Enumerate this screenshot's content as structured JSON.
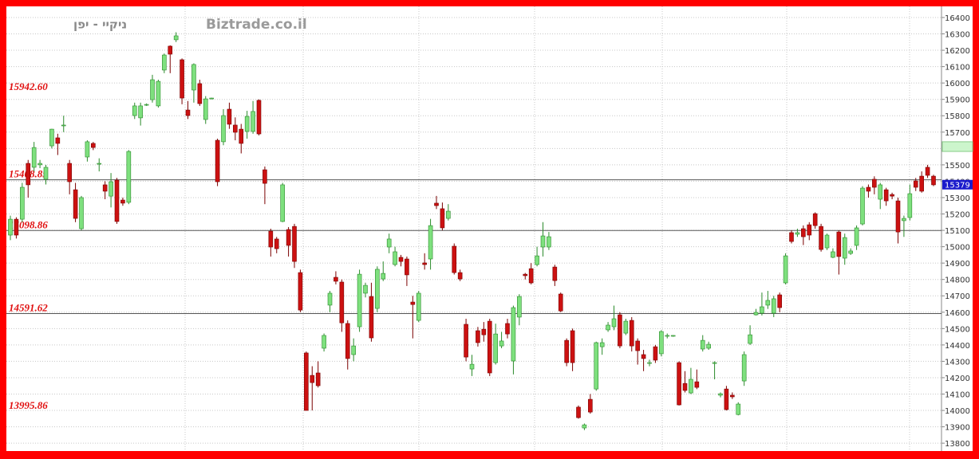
{
  "chart_data": {
    "type": "candlestick",
    "title": "ניקיי - יפן",
    "watermark": "Biztrade.co.il",
    "up_color": "#7ee07e",
    "down_color": "#cc1111",
    "grid": true,
    "ylim": [
      13752,
      16468
    ],
    "yticks": [
      13800,
      13900,
      14000,
      14100,
      14200,
      14300,
      14400,
      14500,
      14600,
      14700,
      14800,
      14900,
      15000,
      15100,
      15200,
      15300,
      15400,
      15500,
      15600,
      15700,
      15800,
      15900,
      16000,
      16100,
      16200,
      16300,
      16400
    ],
    "levels": [
      {
        "value": 15942.6,
        "label": "15942.60",
        "line": false
      },
      {
        "value": 15408.85,
        "label": "15408.85",
        "line": true
      },
      {
        "value": 15098.86,
        "label": "15098.86",
        "line": true
      },
      {
        "value": 14591.62,
        "label": "14591.62",
        "line": true
      },
      {
        "value": 13995.86,
        "label": "13995.86",
        "line": false
      }
    ],
    "last_price": 15379,
    "last_price_color": "#1a1acc",
    "highlight": [
      15582,
      15641
    ],
    "highlight_color": "#ccf5cc",
    "candles": [
      [
        15071,
        15190,
        15040,
        15168
      ],
      [
        15168,
        15180,
        15050,
        15071
      ],
      [
        15168,
        15390,
        15150,
        15363
      ],
      [
        15509,
        15530,
        15300,
        15378
      ],
      [
        15485,
        15640,
        15460,
        15606
      ],
      [
        15500,
        15530,
        15480,
        15509
      ],
      [
        15412,
        15500,
        15380,
        15485
      ],
      [
        15616,
        15720,
        15600,
        15718
      ],
      [
        15665,
        15690,
        15560,
        15631
      ],
      [
        15738,
        15800,
        15700,
        15743
      ],
      [
        15509,
        15530,
        15320,
        15397
      ],
      [
        15348,
        15390,
        15150,
        15173
      ],
      [
        15110,
        15310,
        15100,
        15300
      ],
      [
        15548,
        15650,
        15520,
        15641
      ],
      [
        15631,
        15640,
        15590,
        15606
      ],
      [
        15504,
        15540,
        15460,
        15509
      ],
      [
        15378,
        15400,
        15290,
        15339
      ],
      [
        15309,
        15450,
        15240,
        15397
      ],
      [
        15407,
        15420,
        15140,
        15154
      ],
      [
        15285,
        15300,
        15250,
        15266
      ],
      [
        15271,
        15590,
        15260,
        15582
      ],
      [
        15801,
        15880,
        15780,
        15860
      ],
      [
        15787,
        15880,
        15740,
        15860
      ],
      [
        15865,
        15875,
        15860,
        15869
      ],
      [
        15898,
        16050,
        15880,
        16020
      ],
      [
        15860,
        16020,
        15850,
        16010
      ],
      [
        16079,
        16180,
        16060,
        16171
      ],
      [
        16225,
        16230,
        16060,
        16176
      ],
      [
        16264,
        16310,
        16250,
        16288
      ],
      [
        16142,
        16150,
        15870,
        15908
      ],
      [
        15835,
        15890,
        15780,
        15801
      ],
      [
        15957,
        16120,
        15880,
        16113
      ],
      [
        15996,
        16020,
        15860,
        15874
      ],
      [
        15777,
        15920,
        15750,
        15903
      ],
      [
        15903,
        15910,
        15900,
        15908
      ],
      [
        15650,
        15660,
        15370,
        15397
      ],
      [
        15641,
        15840,
        15620,
        15801
      ],
      [
        15840,
        15880,
        15720,
        15748
      ],
      [
        15743,
        15790,
        15650,
        15699
      ],
      [
        15718,
        15750,
        15570,
        15631
      ],
      [
        15704,
        15830,
        15660,
        15796
      ],
      [
        15704,
        15890,
        15690,
        15826
      ],
      [
        15894,
        15900,
        15680,
        15689
      ],
      [
        15470,
        15490,
        15260,
        15387
      ],
      [
        15095,
        15110,
        14940,
        14998
      ],
      [
        15047,
        15060,
        14960,
        14988
      ],
      [
        15154,
        15390,
        15150,
        15378
      ],
      [
        15105,
        15120,
        14940,
        15008
      ],
      [
        15124,
        15140,
        14870,
        14910
      ],
      [
        14842,
        14860,
        14600,
        14613
      ],
      [
        14351,
        14360,
        14000,
        14000
      ],
      [
        14214,
        14270,
        14000,
        14170
      ],
      [
        14229,
        14300,
        14140,
        14151
      ],
      [
        14380,
        14470,
        14360,
        14458
      ],
      [
        14643,
        14730,
        14600,
        14716
      ],
      [
        14813,
        14850,
        14770,
        14789
      ],
      [
        14784,
        14800,
        14480,
        14535
      ],
      [
        14531,
        14550,
        14250,
        14317
      ],
      [
        14341,
        14440,
        14300,
        14394
      ],
      [
        14511,
        14860,
        14480,
        14832
      ],
      [
        14716,
        14780,
        14690,
        14764
      ],
      [
        14696,
        14780,
        14420,
        14443
      ],
      [
        14623,
        14880,
        14600,
        14862
      ],
      [
        14803,
        14910,
        14790,
        14837
      ],
      [
        14998,
        15080,
        14960,
        15047
      ],
      [
        14891,
        15000,
        14880,
        14969
      ],
      [
        14935,
        14950,
        14880,
        14910
      ],
      [
        14925,
        14940,
        14760,
        14828
      ],
      [
        14662,
        14700,
        14440,
        14647
      ],
      [
        14550,
        14730,
        14540,
        14716
      ],
      [
        14901,
        14960,
        14860,
        14891
      ],
      [
        14925,
        15170,
        14860,
        15129
      ],
      [
        15266,
        15310,
        15230,
        15251
      ],
      [
        15232,
        15270,
        15100,
        15115
      ],
      [
        15173,
        15260,
        15160,
        15217
      ],
      [
        15003,
        15020,
        14830,
        14842
      ],
      [
        14842,
        14860,
        14790,
        14803
      ],
      [
        14526,
        14560,
        14300,
        14326
      ],
      [
        14253,
        14340,
        14210,
        14282
      ],
      [
        14487,
        14510,
        14390,
        14414
      ],
      [
        14496,
        14540,
        14420,
        14462
      ],
      [
        14545,
        14560,
        14210,
        14229
      ],
      [
        14292,
        14530,
        14280,
        14467
      ],
      [
        14394,
        14480,
        14380,
        14424
      ],
      [
        14531,
        14560,
        14440,
        14467
      ],
      [
        14302,
        14640,
        14220,
        14628
      ],
      [
        14570,
        14710,
        14520,
        14696
      ],
      [
        14832,
        14840,
        14800,
        14823
      ],
      [
        14866,
        14900,
        14770,
        14779
      ],
      [
        14891,
        15000,
        14880,
        14944
      ],
      [
        14998,
        15150,
        14940,
        15066
      ],
      [
        14998,
        15090,
        14980,
        15061
      ],
      [
        14876,
        14890,
        14760,
        14793
      ],
      [
        14711,
        14720,
        14600,
        14608
      ],
      [
        14428,
        14440,
        14270,
        14292
      ],
      [
        14487,
        14500,
        14240,
        14292
      ],
      [
        14020,
        14030,
        13950,
        13956
      ],
      [
        13893,
        13920,
        13880,
        13912
      ],
      [
        14068,
        14100,
        13980,
        13990
      ],
      [
        14131,
        14420,
        14120,
        14414
      ],
      [
        14389,
        14440,
        14340,
        14414
      ],
      [
        14492,
        14540,
        14480,
        14521
      ],
      [
        14511,
        14640,
        14490,
        14560
      ],
      [
        14584,
        14600,
        14380,
        14394
      ],
      [
        14472,
        14560,
        14460,
        14545
      ],
      [
        14550,
        14570,
        14360,
        14394
      ],
      [
        14424,
        14440,
        14280,
        14365
      ],
      [
        14341,
        14370,
        14240,
        14317
      ],
      [
        14287,
        14310,
        14270,
        14292
      ],
      [
        14389,
        14400,
        14290,
        14307
      ],
      [
        14346,
        14490,
        14330,
        14482
      ],
      [
        14453,
        14470,
        14440,
        14458
      ],
      [
        14453,
        14460,
        14450,
        14458
      ],
      [
        14292,
        14300,
        14030,
        14034
      ],
      [
        14165,
        14240,
        14110,
        14122
      ],
      [
        14107,
        14260,
        14100,
        14190
      ],
      [
        14175,
        14250,
        14130,
        14141
      ],
      [
        14375,
        14460,
        14360,
        14428
      ],
      [
        14380,
        14420,
        14370,
        14404
      ],
      [
        14287,
        14300,
        14190,
        14292
      ],
      [
        14093,
        14110,
        14080,
        14102
      ],
      [
        14131,
        14150,
        14000,
        14005
      ],
      [
        14093,
        14110,
        14070,
        14083
      ],
      [
        13975,
        14050,
        13970,
        14039
      ],
      [
        14180,
        14360,
        14150,
        14341
      ],
      [
        14409,
        14520,
        14400,
        14462
      ],
      [
        14584,
        14620,
        14580,
        14599
      ],
      [
        14594,
        14720,
        14580,
        14633
      ],
      [
        14643,
        14730,
        14620,
        14672
      ],
      [
        14594,
        14700,
        14570,
        14682
      ],
      [
        14706,
        14720,
        14600,
        14628
      ],
      [
        14779,
        14960,
        14770,
        14944
      ],
      [
        15086,
        15100,
        15020,
        15032
      ],
      [
        15076,
        15110,
        15060,
        15086
      ],
      [
        15110,
        15130,
        15010,
        15061
      ],
      [
        15134,
        15150,
        15040,
        15071
      ],
      [
        15202,
        15210,
        15110,
        15129
      ],
      [
        15124,
        15140,
        14970,
        14983
      ],
      [
        14993,
        15080,
        14980,
        15071
      ],
      [
        14935,
        14990,
        14930,
        14969
      ],
      [
        15090,
        15100,
        14830,
        14940
      ],
      [
        14930,
        15080,
        14890,
        15056
      ],
      [
        14959,
        14990,
        14950,
        14974
      ],
      [
        15008,
        15130,
        14980,
        15115
      ],
      [
        15139,
        15370,
        15130,
        15358
      ],
      [
        15363,
        15380,
        15300,
        15339
      ],
      [
        15412,
        15430,
        15320,
        15363
      ],
      [
        15290,
        15390,
        15230,
        15378
      ],
      [
        15348,
        15360,
        15250,
        15280
      ],
      [
        15319,
        15330,
        15290,
        15309
      ],
      [
        15280,
        15300,
        15020,
        15090
      ],
      [
        15159,
        15190,
        15060,
        15173
      ],
      [
        15178,
        15380,
        15160,
        15324
      ],
      [
        15402,
        15420,
        15340,
        15363
      ],
      [
        15431,
        15460,
        15330,
        15339
      ],
      [
        15485,
        15500,
        15420,
        15436
      ],
      [
        15431,
        15440,
        15370,
        15378
      ]
    ]
  }
}
